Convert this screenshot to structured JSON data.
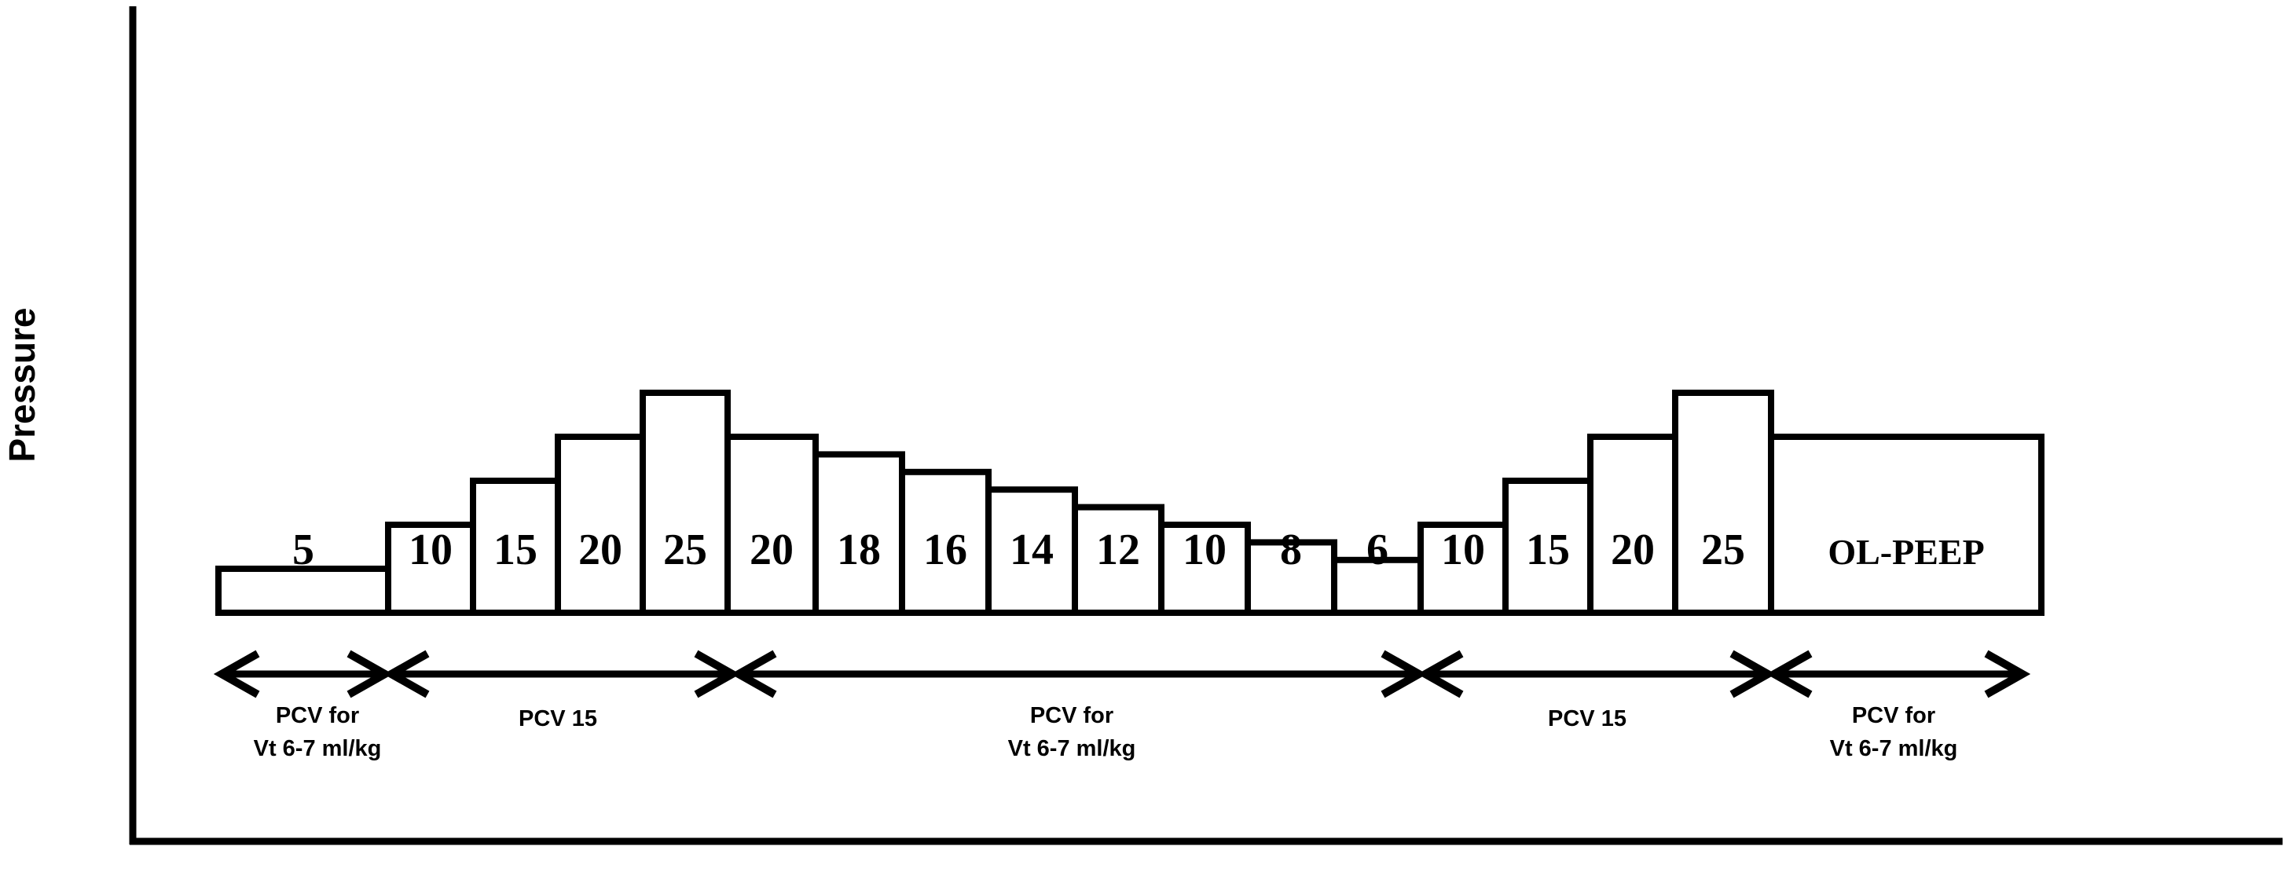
{
  "diagram": {
    "y_axis_label": "Pressure",
    "steps": [
      {
        "label": "5",
        "value": 5
      },
      {
        "label": "10",
        "value": 10
      },
      {
        "label": "15",
        "value": 15
      },
      {
        "label": "20",
        "value": 20
      },
      {
        "label": "25",
        "value": 25
      },
      {
        "label": "20",
        "value": 20
      },
      {
        "label": "18",
        "value": 18
      },
      {
        "label": "16",
        "value": 16
      },
      {
        "label": "14",
        "value": 14
      },
      {
        "label": "12",
        "value": 12
      },
      {
        "label": "10",
        "value": 10
      },
      {
        "label": "8",
        "value": 8
      },
      {
        "label": "6",
        "value": 6
      },
      {
        "label": "10",
        "value": 10
      },
      {
        "label": "15",
        "value": 15
      },
      {
        "label": "20",
        "value": 20
      },
      {
        "label": "25",
        "value": 25
      },
      {
        "label": "OL-PEEP",
        "value": 20
      }
    ],
    "phases": [
      {
        "lines": [
          "PCV for",
          "Vt 6-7 ml/kg"
        ]
      },
      {
        "lines": [
          "PCV 15"
        ]
      },
      {
        "lines": [
          "PCV for",
          "Vt 6-7 ml/kg"
        ]
      },
      {
        "lines": [
          "PCV 15"
        ]
      },
      {
        "lines": [
          "PCV for",
          "Vt 6-7 ml/kg"
        ]
      }
    ]
  }
}
